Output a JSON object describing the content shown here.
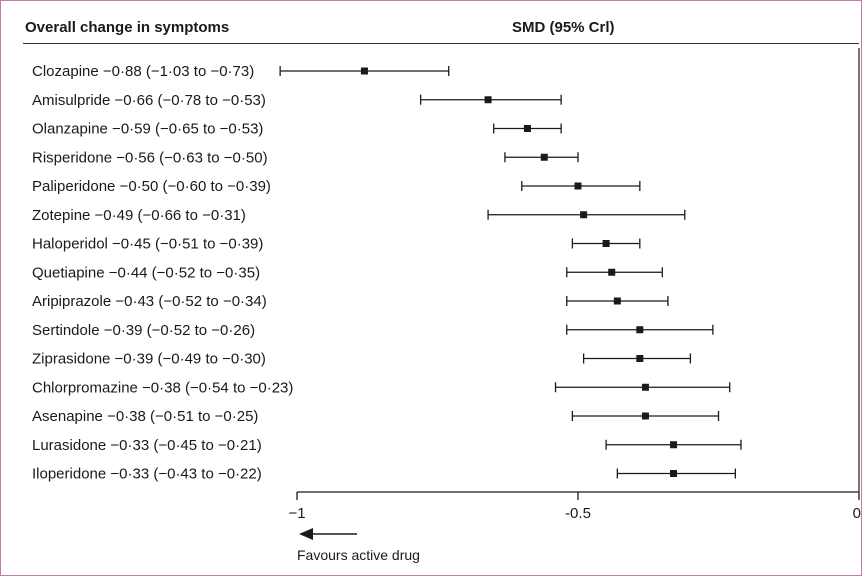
{
  "chart_data": {
    "type": "forest",
    "title": "Overall change in symptoms",
    "value_header": "SMD (95% Crl)",
    "x_ticks": [
      {
        "value": -1,
        "label": "−1"
      },
      {
        "value": -0.5,
        "label": "-0.5"
      },
      {
        "value": 0,
        "label": "0"
      }
    ],
    "xlim": [
      -1,
      0
    ],
    "annotation": "Favours active drug",
    "rows": [
      {
        "drug": "Clozapine",
        "label": "Clozapine −0·88 (−1·03 to −0·73)",
        "estimate": -0.88,
        "lower": -1.03,
        "upper": -0.73
      },
      {
        "drug": "Amisulpride",
        "label": "Amisulpride −0·66 (−0·78 to −0·53)",
        "estimate": -0.66,
        "lower": -0.78,
        "upper": -0.53
      },
      {
        "drug": "Olanzapine",
        "label": "Olanzapine −0·59 (−0·65 to −0·53)",
        "estimate": -0.59,
        "lower": -0.65,
        "upper": -0.53
      },
      {
        "drug": "Risperidone",
        "label": "Risperidone −0·56 (−0·63 to −0·50)",
        "estimate": -0.56,
        "lower": -0.63,
        "upper": -0.5
      },
      {
        "drug": "Paliperidone",
        "label": "Paliperidone −0·50 (−0·60 to −0·39)",
        "estimate": -0.5,
        "lower": -0.6,
        "upper": -0.39
      },
      {
        "drug": "Zotepine",
        "label": "Zotepine −0·49 (−0·66 to −0·31)",
        "estimate": -0.49,
        "lower": -0.66,
        "upper": -0.31
      },
      {
        "drug": "Haloperidol",
        "label": "Haloperidol −0·45 (−0·51 to −0·39)",
        "estimate": -0.45,
        "lower": -0.51,
        "upper": -0.39
      },
      {
        "drug": "Quetiapine",
        "label": "Quetiapine −0·44 (−0·52 to −0·35)",
        "estimate": -0.44,
        "lower": -0.52,
        "upper": -0.35
      },
      {
        "drug": "Aripiprazole",
        "label": "Aripiprazole −0·43 (−0·52 to −0·34)",
        "estimate": -0.43,
        "lower": -0.52,
        "upper": -0.34
      },
      {
        "drug": "Sertindole",
        "label": "Sertindole −0·39 (−0·52 to −0·26)",
        "estimate": -0.39,
        "lower": -0.52,
        "upper": -0.26
      },
      {
        "drug": "Ziprasidone",
        "label": "Ziprasidone −0·39 (−0·49 to −0·30)",
        "estimate": -0.39,
        "lower": -0.49,
        "upper": -0.3
      },
      {
        "drug": "Chlorpromazine",
        "label": "Chlorpromazine −0·38 (−0·54 to −0·23)",
        "estimate": -0.38,
        "lower": -0.54,
        "upper": -0.23
      },
      {
        "drug": "Asenapine",
        "label": "Asenapine −0·38 (−0·51 to −0·25)",
        "estimate": -0.38,
        "lower": -0.51,
        "upper": -0.25
      },
      {
        "drug": "Lurasidone",
        "label": "Lurasidone −0·33 (−0·45 to −0·21)",
        "estimate": -0.33,
        "lower": -0.45,
        "upper": -0.21
      },
      {
        "drug": "Iloperidone",
        "label": "Iloperidone −0·33 (−0·43 to −0·22)",
        "estimate": -0.33,
        "lower": -0.43,
        "upper": -0.22
      }
    ]
  },
  "colors": {
    "ink": "#1a1a1a",
    "frame_border": "#c678a8"
  }
}
